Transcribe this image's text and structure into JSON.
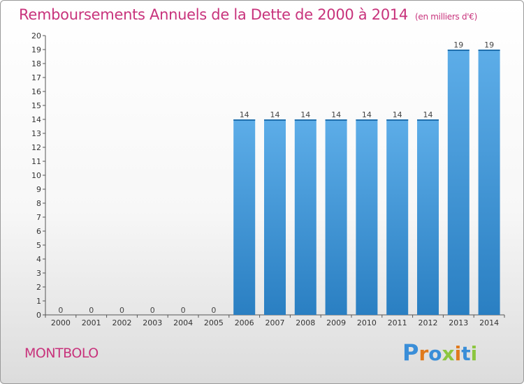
{
  "chart_data": {
    "type": "bar",
    "title": "Remboursements Annuels de la Dette de 2000 à 2014",
    "unit": "(en milliers d'€)",
    "categories": [
      "2000",
      "2001",
      "2002",
      "2003",
      "2004",
      "2005",
      "2006",
      "2007",
      "2008",
      "2009",
      "2010",
      "2011",
      "2012",
      "2013",
      "2014"
    ],
    "values": [
      0,
      0,
      0,
      0,
      0,
      0,
      14,
      14,
      14,
      14,
      14,
      14,
      14,
      19,
      19
    ],
    "ylim": [
      0,
      20
    ],
    "yticks": [
      0,
      1,
      2,
      3,
      4,
      5,
      6,
      7,
      8,
      9,
      10,
      11,
      12,
      13,
      14,
      15,
      16,
      17,
      18,
      19,
      20
    ],
    "grid": false,
    "bar_color": "#4a9fe0"
  },
  "footer": {
    "town": "MONTBOLO",
    "logo": "Proxiti"
  },
  "colors": {
    "title": "#c8337c",
    "logo": [
      "#3a8ed8",
      "#e07a1c",
      "#3a8ed8",
      "#8cc63f",
      "#e07a1c",
      "#3a8ed8",
      "#8cc63f"
    ]
  }
}
